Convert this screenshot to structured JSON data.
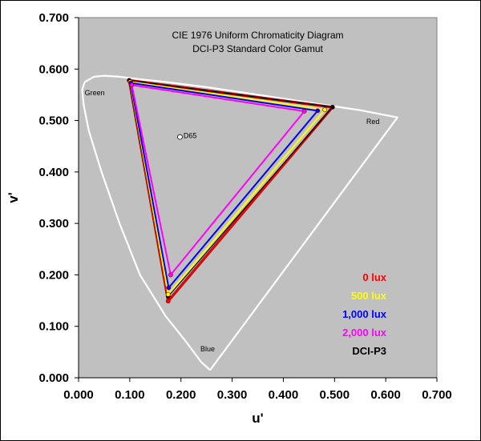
{
  "chart_data": {
    "type": "scatter",
    "title": "CIE 1976 Uniform Chromaticity Diagram",
    "subtitle": "DCI-P3 Standard Color Gamut",
    "xlabel": "u'",
    "ylabel": "v'",
    "xlim": [
      0,
      0.7
    ],
    "ylim": [
      0,
      0.7
    ],
    "x_ticks": [
      "0.000",
      "0.100",
      "0.200",
      "0.300",
      "0.400",
      "0.500",
      "0.600",
      "0.700"
    ],
    "y_ticks": [
      "0.000",
      "0.100",
      "0.200",
      "0.300",
      "0.400",
      "0.500",
      "0.600",
      "0.700"
    ],
    "grid": false,
    "legend_position": "bottom-right",
    "plot_background": "#c0c0c0",
    "spectral_locus": {
      "color": "#ffffff",
      "points": [
        [
          0.257,
          0.015
        ],
        [
          0.24,
          0.03
        ],
        [
          0.21,
          0.07
        ],
        [
          0.17,
          0.12
        ],
        [
          0.12,
          0.2
        ],
        [
          0.08,
          0.3
        ],
        [
          0.045,
          0.4
        ],
        [
          0.02,
          0.48
        ],
        [
          0.01,
          0.53
        ],
        [
          0.007,
          0.56
        ],
        [
          0.012,
          0.575
        ],
        [
          0.03,
          0.585
        ],
        [
          0.05,
          0.587
        ],
        [
          0.08,
          0.585
        ],
        [
          0.12,
          0.58
        ],
        [
          0.17,
          0.575
        ],
        [
          0.25,
          0.565
        ],
        [
          0.35,
          0.55
        ],
        [
          0.45,
          0.535
        ],
        [
          0.55,
          0.52
        ],
        [
          0.623,
          0.506
        ],
        [
          0.257,
          0.015
        ]
      ]
    },
    "annotations": [
      {
        "text": "Green",
        "x": 0.012,
        "y": 0.549
      },
      {
        "text": "Red",
        "x": 0.562,
        "y": 0.493
      },
      {
        "text": "Blue",
        "x": 0.238,
        "y": 0.051
      },
      {
        "text": "D65",
        "x": 0.205,
        "y": 0.466
      }
    ],
    "white_point": {
      "label": "D65",
      "u": 0.198,
      "v": 0.468
    },
    "series": [
      {
        "name": "0 lux",
        "color": "#ff0000",
        "points": [
          [
            0.496,
            0.526
          ],
          [
            0.099,
            0.578
          ],
          [
            0.175,
            0.149
          ]
        ]
      },
      {
        "name": "500 lux",
        "color": "#ffff00",
        "points": [
          [
            0.481,
            0.521
          ],
          [
            0.101,
            0.575
          ],
          [
            0.175,
            0.162
          ]
        ]
      },
      {
        "name": "1,000 lux",
        "color": "#0000ff",
        "points": [
          [
            0.467,
            0.519
          ],
          [
            0.102,
            0.573
          ],
          [
            0.176,
            0.175
          ]
        ]
      },
      {
        "name": "2,000 lux",
        "color": "#ff00ff",
        "points": [
          [
            0.441,
            0.518
          ],
          [
            0.104,
            0.569
          ],
          [
            0.18,
            0.2
          ]
        ]
      },
      {
        "name": "DCI-P3",
        "color": "#000000",
        "points": [
          [
            0.496,
            0.526
          ],
          [
            0.099,
            0.578
          ],
          [
            0.175,
            0.158
          ]
        ]
      }
    ],
    "reference_line": {
      "color": "#8b0000",
      "points": [
        [
          0.496,
          0.526
        ],
        [
          0.099,
          0.578
        ],
        [
          0.175,
          0.149
        ]
      ]
    }
  }
}
